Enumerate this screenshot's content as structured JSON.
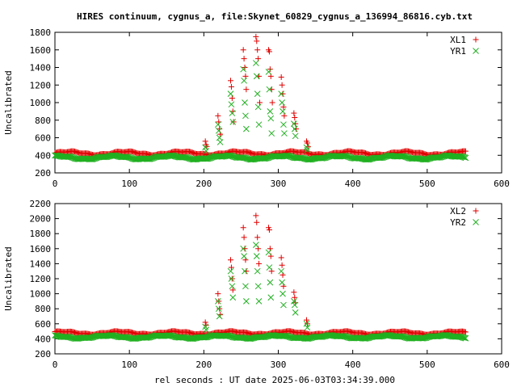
{
  "figure": {
    "title": "HIRES continuum, cygnus_a, file:Skynet_60829_cygnus_a_136994_86816.cyb.txt",
    "xlabel": "rel seconds : UT date 2025-06-03T03:34:39.000"
  },
  "colors": {
    "red": "#e00000",
    "green": "#20b020",
    "axis": "#000000"
  },
  "chart_data": [
    {
      "type": "scatter",
      "ylabel": "Uncalibrated",
      "xlim": [
        0,
        600
      ],
      "ylim": [
        200,
        1800
      ],
      "xticks": [
        0,
        100,
        200,
        300,
        400,
        500,
        600
      ],
      "yticks": [
        200,
        400,
        600,
        800,
        1000,
        1200,
        1400,
        1600,
        1800
      ],
      "legend": "top-right",
      "series": [
        {
          "name": "XL1",
          "marker": "plus",
          "baseline": 425,
          "amp": 18,
          "x_range": [
            0,
            552
          ],
          "peaks": [
            [
              202,
              560
            ],
            [
              203,
              520
            ],
            [
              204,
              500
            ],
            [
              219,
              850
            ],
            [
              220,
              780
            ],
            [
              221,
              700
            ],
            [
              222,
              640
            ],
            [
              236,
              1250
            ],
            [
              237,
              1180
            ],
            [
              238,
              1050
            ],
            [
              239,
              900
            ],
            [
              240,
              780
            ],
            [
              253,
              1600
            ],
            [
              254,
              1500
            ],
            [
              255,
              1400
            ],
            [
              256,
              1300
            ],
            [
              257,
              1150
            ],
            [
              270,
              1750
            ],
            [
              271,
              1700
            ],
            [
              272,
              1600
            ],
            [
              273,
              1500
            ],
            [
              274,
              1300
            ],
            [
              275,
              1000
            ],
            [
              287,
              1600
            ],
            [
              288,
              1580
            ],
            [
              289,
              1380
            ],
            [
              290,
              1300
            ],
            [
              291,
              1150
            ],
            [
              292,
              1000
            ],
            [
              304,
              1290
            ],
            [
              305,
              1200
            ],
            [
              306,
              1100
            ],
            [
              307,
              950
            ],
            [
              308,
              850
            ],
            [
              321,
              880
            ],
            [
              322,
              830
            ],
            [
              323,
              760
            ],
            [
              324,
              700
            ],
            [
              338,
              560
            ],
            [
              339,
              540
            ],
            [
              340,
              500
            ]
          ]
        },
        {
          "name": "YR1",
          "marker": "cross",
          "baseline": 375,
          "amp": 18,
          "x_range": [
            0,
            552
          ],
          "peaks": [
            [
              202,
              490
            ],
            [
              203,
              450
            ],
            [
              219,
              750
            ],
            [
              220,
              680
            ],
            [
              221,
              600
            ],
            [
              222,
              550
            ],
            [
              236,
              1100
            ],
            [
              237,
              980
            ],
            [
              238,
              880
            ],
            [
              239,
              780
            ],
            [
              253,
              1380
            ],
            [
              254,
              1250
            ],
            [
              255,
              1000
            ],
            [
              256,
              850
            ],
            [
              257,
              700
            ],
            [
              270,
              1450
            ],
            [
              271,
              1300
            ],
            [
              272,
              1100
            ],
            [
              273,
              950
            ],
            [
              274,
              750
            ],
            [
              287,
              1350
            ],
            [
              288,
              1150
            ],
            [
              289,
              900
            ],
            [
              290,
              820
            ],
            [
              291,
              650
            ],
            [
              304,
              1100
            ],
            [
              305,
              1000
            ],
            [
              306,
              900
            ],
            [
              307,
              750
            ],
            [
              308,
              650
            ],
            [
              321,
              760
            ],
            [
              322,
              700
            ],
            [
              323,
              620
            ],
            [
              338,
              490
            ],
            [
              339,
              460
            ]
          ]
        }
      ]
    },
    {
      "type": "scatter",
      "ylabel": "Uncalibrated",
      "xlim": [
        0,
        600
      ],
      "ylim": [
        200,
        2200
      ],
      "xticks": [
        0,
        100,
        200,
        300,
        400,
        500,
        600
      ],
      "yticks": [
        200,
        400,
        600,
        800,
        1000,
        1200,
        1400,
        1600,
        1800,
        2000,
        2200
      ],
      "legend": "top-right",
      "series": [
        {
          "name": "XL2",
          "marker": "plus",
          "baseline": 480,
          "amp": 18,
          "x_range": [
            0,
            552
          ],
          "peaks": [
            [
              202,
              620
            ],
            [
              203,
              580
            ],
            [
              219,
              1000
            ],
            [
              220,
              900
            ],
            [
              221,
              800
            ],
            [
              222,
              720
            ],
            [
              236,
              1450
            ],
            [
              237,
              1350
            ],
            [
              238,
              1200
            ],
            [
              239,
              1050
            ],
            [
              253,
              1880
            ],
            [
              254,
              1750
            ],
            [
              255,
              1600
            ],
            [
              256,
              1450
            ],
            [
              257,
              1300
            ],
            [
              270,
              2040
            ],
            [
              271,
              1950
            ],
            [
              272,
              1750
            ],
            [
              273,
              1600
            ],
            [
              274,
              1400
            ],
            [
              287,
              1880
            ],
            [
              288,
              1850
            ],
            [
              289,
              1600
            ],
            [
              290,
              1500
            ],
            [
              291,
              1300
            ],
            [
              304,
              1480
            ],
            [
              305,
              1380
            ],
            [
              306,
              1250
            ],
            [
              307,
              1100
            ],
            [
              321,
              1020
            ],
            [
              322,
              950
            ],
            [
              323,
              880
            ],
            [
              338,
              650
            ],
            [
              339,
              600
            ]
          ]
        },
        {
          "name": "YR2",
          "marker": "cross",
          "baseline": 425,
          "amp": 18,
          "x_range": [
            0,
            552
          ],
          "peaks": [
            [
              202,
              560
            ],
            [
              203,
              520
            ],
            [
              219,
              900
            ],
            [
              220,
              800
            ],
            [
              221,
              700
            ],
            [
              236,
              1300
            ],
            [
              237,
              1200
            ],
            [
              238,
              1100
            ],
            [
              239,
              950
            ],
            [
              253,
              1600
            ],
            [
              254,
              1500
            ],
            [
              255,
              1300
            ],
            [
              256,
              1100
            ],
            [
              257,
              900
            ],
            [
              270,
              1650
            ],
            [
              271,
              1500
            ],
            [
              272,
              1300
            ],
            [
              273,
              1100
            ],
            [
              274,
              900
            ],
            [
              287,
              1550
            ],
            [
              288,
              1350
            ],
            [
              289,
              1150
            ],
            [
              290,
              950
            ],
            [
              304,
              1300
            ],
            [
              305,
              1150
            ],
            [
              306,
              1000
            ],
            [
              307,
              850
            ],
            [
              321,
              900
            ],
            [
              322,
              850
            ],
            [
              323,
              750
            ],
            [
              338,
              600
            ],
            [
              339,
              550
            ]
          ]
        }
      ]
    }
  ]
}
